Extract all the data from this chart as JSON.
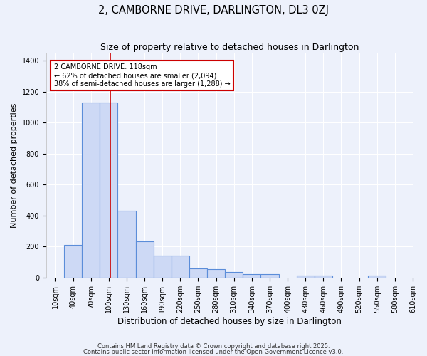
{
  "title": "2, CAMBORNE DRIVE, DARLINGTON, DL3 0ZJ",
  "subtitle": "Size of property relative to detached houses in Darlington",
  "xlabel": "Distribution of detached houses by size in Darlington",
  "ylabel": "Number of detached properties",
  "bin_labels": [
    "10sqm",
    "40sqm",
    "70sqm",
    "100sqm",
    "130sqm",
    "160sqm",
    "190sqm",
    "220sqm",
    "250sqm",
    "280sqm",
    "310sqm",
    "340sqm",
    "370sqm",
    "400sqm",
    "430sqm",
    "460sqm",
    "490sqm",
    "520sqm",
    "550sqm",
    "580sqm",
    "610sqm"
  ],
  "bin_edges": [
    10,
    40,
    70,
    100,
    130,
    160,
    190,
    220,
    250,
    280,
    310,
    340,
    370,
    400,
    430,
    460,
    490,
    520,
    550,
    580,
    610
  ],
  "bar_heights": [
    0,
    210,
    1130,
    1130,
    430,
    235,
    140,
    140,
    60,
    55,
    35,
    20,
    20,
    0,
    12,
    12,
    0,
    0,
    12,
    0,
    0
  ],
  "bar_color": "#cdd9f5",
  "bar_edge_color": "#5b8dd9",
  "red_line_x": 118,
  "ylim": [
    0,
    1450
  ],
  "annotation_text": "2 CAMBORNE DRIVE: 118sqm\n← 62% of detached houses are smaller (2,094)\n38% of semi-detached houses are larger (1,288) →",
  "annotation_box_color": "#ffffff",
  "annotation_box_edge_color": "#cc0000",
  "footnote1": "Contains HM Land Registry data © Crown copyright and database right 2025.",
  "footnote2": "Contains public sector information licensed under the Open Government Licence v3.0.",
  "bg_color": "#edf1fb",
  "grid_color": "#ffffff",
  "title_fontsize": 10.5,
  "subtitle_fontsize": 9,
  "xlabel_fontsize": 8.5,
  "ylabel_fontsize": 8,
  "tick_fontsize": 7,
  "annot_fontsize": 7,
  "footnote_fontsize": 6
}
